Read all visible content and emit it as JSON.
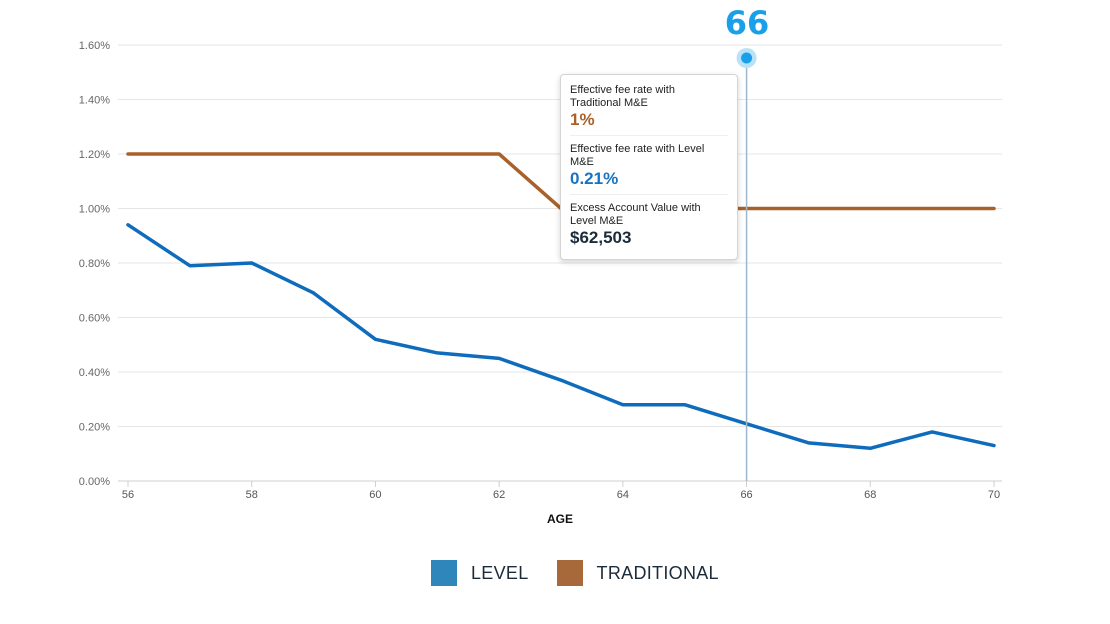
{
  "chart_data": {
    "type": "line",
    "x": [
      56,
      57,
      58,
      59,
      60,
      61,
      62,
      63,
      64,
      65,
      66,
      67,
      68,
      69,
      70
    ],
    "series": [
      {
        "name": "LEVEL",
        "color": "#0f6cbd",
        "values": [
          0.94,
          0.79,
          0.8,
          0.69,
          0.52,
          0.47,
          0.45,
          0.37,
          0.28,
          0.28,
          0.21,
          0.14,
          0.12,
          0.18,
          0.13
        ]
      },
      {
        "name": "TRADITIONAL",
        "color": "#a8612a",
        "values": [
          1.2,
          1.2,
          1.2,
          1.2,
          1.2,
          1.2,
          1.2,
          1.0,
          1.0,
          1.0,
          1.0,
          1.0,
          1.0,
          1.0,
          1.0
        ]
      }
    ],
    "xlabel": "AGE",
    "ylabel": "",
    "xlim": [
      56,
      70
    ],
    "ylim": [
      0,
      1.6
    ],
    "xticks": [
      "56",
      "58",
      "60",
      "62",
      "64",
      "66",
      "68",
      "70"
    ],
    "yticks": [
      "0.00%",
      "0.20%",
      "0.40%",
      "0.60%",
      "0.80%",
      "1.00%",
      "1.20%",
      "1.40%",
      "1.60%"
    ],
    "grid": true,
    "legend_position": "bottom-center",
    "highlight_x": 66
  },
  "marker": {
    "label": "66",
    "color": "#1aa0e8"
  },
  "tooltip": {
    "traditional_label": "Effective fee rate with Traditional M&E",
    "traditional_value": "1%",
    "level_label": "Effective fee rate with Level M&E",
    "level_value": "0.21%",
    "excess_label": "Excess Account Value with Level M&E",
    "excess_value": "$62,503"
  },
  "legend": {
    "level_label": "LEVEL",
    "level_color": "#2e86bb",
    "traditional_label": "TRADITIONAL",
    "traditional_color": "#a8693a"
  }
}
